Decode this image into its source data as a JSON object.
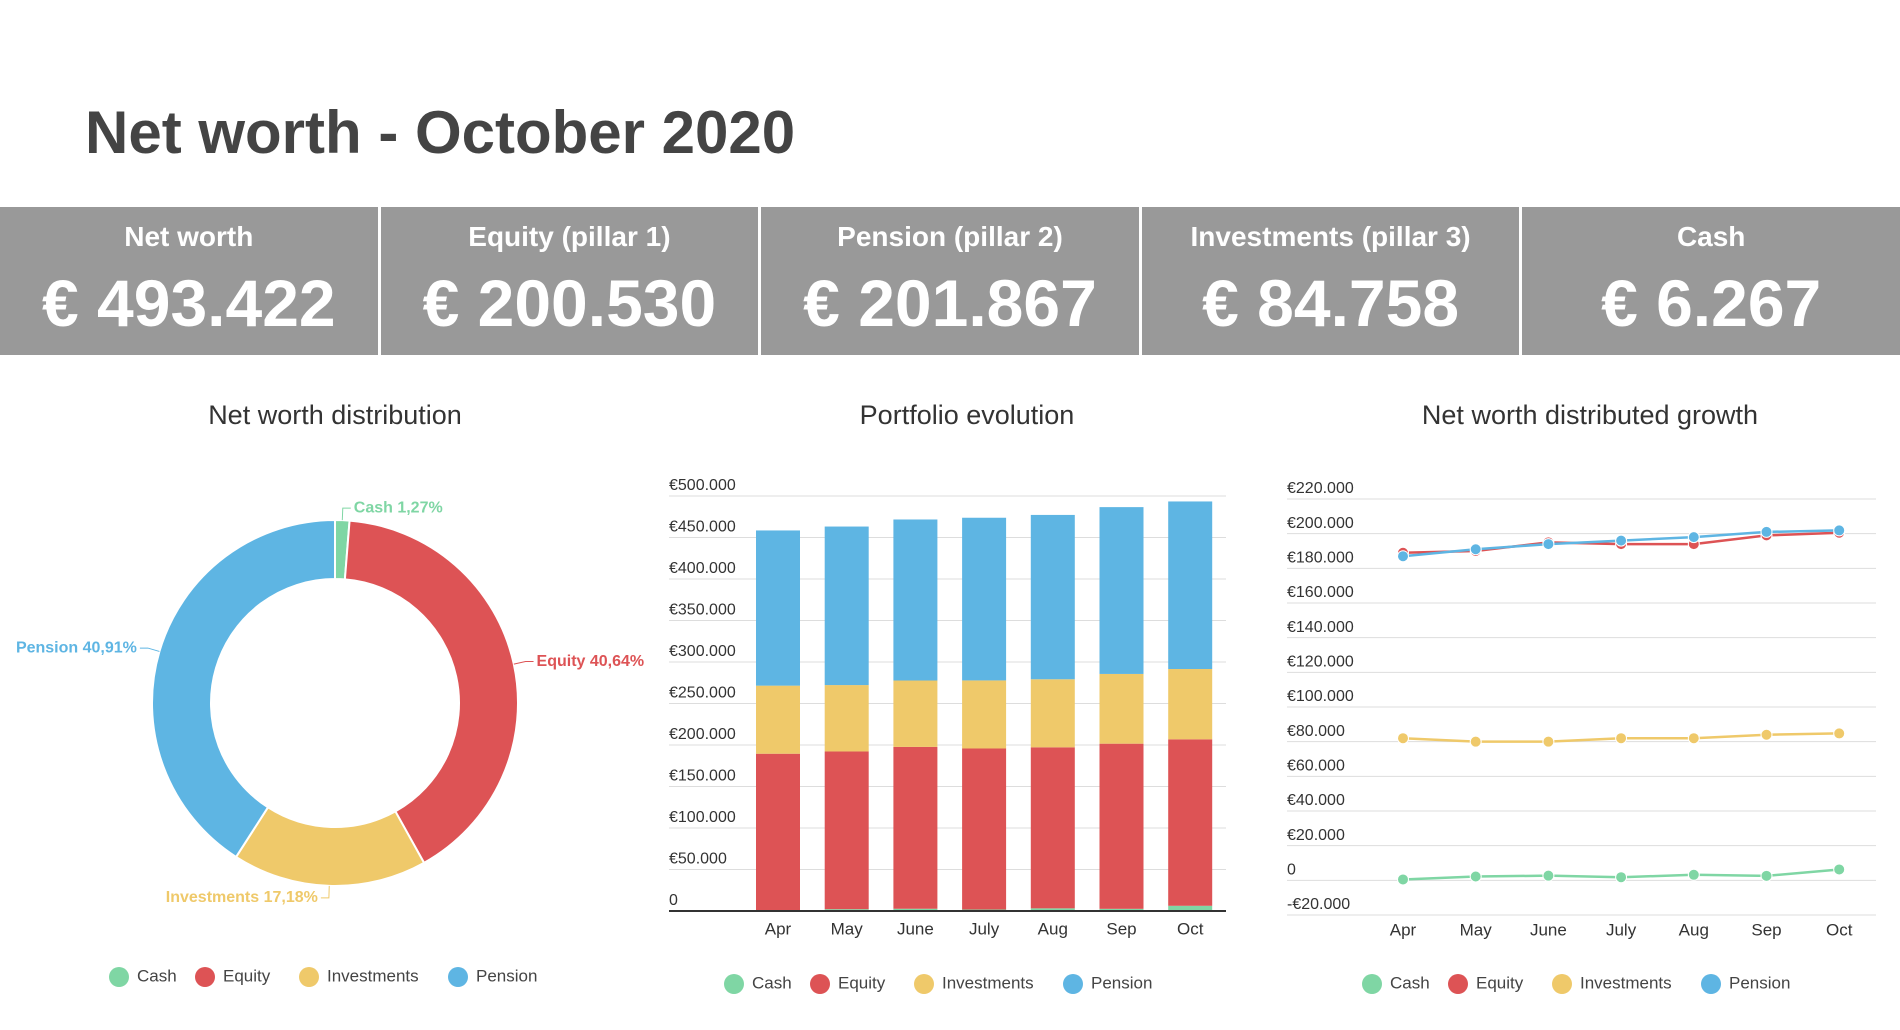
{
  "header": {
    "title": "Net worth - October 2020"
  },
  "kpis": [
    {
      "label": "Net worth",
      "value": "€ 493.422"
    },
    {
      "label": "Equity (pillar 1)",
      "value": "€ 200.530"
    },
    {
      "label": "Pension (pillar 2)",
      "value": "€ 201.867"
    },
    {
      "label": "Investments (pillar 3)",
      "value": "€ 84.758"
    },
    {
      "label": "Cash",
      "value": "€ 6.267"
    }
  ],
  "chart_data": [
    {
      "type": "pie",
      "title": "Net worth distribution",
      "donut": true,
      "categories": [
        "Cash",
        "Equity",
        "Investments",
        "Pension"
      ],
      "values": [
        1.27,
        40.64,
        17.18,
        40.91
      ],
      "value_labels": [
        "Cash 1,27%",
        "Equity 40,64%",
        "Investments 17,18%",
        "Pension 40,91%"
      ],
      "colors": [
        "#7fd6a4",
        "#dd5355",
        "#efc96a",
        "#5eb5e3"
      ]
    },
    {
      "type": "bar",
      "stacked": true,
      "title": "Portfolio evolution",
      "categories": [
        "Apr",
        "May",
        "June",
        "July",
        "Aug",
        "Sep",
        "Oct"
      ],
      "series": [
        {
          "name": "Cash",
          "color": "#7fd6a4",
          "values": [
            500,
            2200,
            2700,
            1800,
            3200,
            2600,
            6267
          ]
        },
        {
          "name": "Equity",
          "color": "#dd5355",
          "values": [
            189000,
            190000,
            195000,
            194000,
            194000,
            199000,
            200530
          ]
        },
        {
          "name": "Investments",
          "color": "#efc96a",
          "values": [
            82000,
            80000,
            80000,
            82000,
            82000,
            84000,
            84758
          ]
        },
        {
          "name": "Pension",
          "color": "#5eb5e3",
          "values": [
            187000,
            191000,
            194000,
            196000,
            198000,
            201000,
            201867
          ]
        }
      ],
      "ylim": [
        0,
        500000
      ],
      "yticks": [
        0,
        {
          "value": 50000,
          "label": "€50.000"
        },
        {
          "value": 100000,
          "label": "€100.000"
        },
        {
          "value": 150000,
          "label": "€150.000"
        },
        {
          "value": 200000,
          "label": "€200.000"
        },
        {
          "value": 250000,
          "label": "€250.000"
        },
        {
          "value": 300000,
          "label": "€300.000"
        },
        {
          "value": 350000,
          "label": "€350.000"
        },
        {
          "value": 400000,
          "label": "€400.000"
        },
        {
          "value": 450000,
          "label": "€450.000"
        },
        {
          "value": 500000,
          "label": "€500.000"
        }
      ],
      "grid": true
    },
    {
      "type": "line",
      "title": "Net worth distributed growth",
      "categories": [
        "Apr",
        "May",
        "June",
        "July",
        "Aug",
        "Sep",
        "Oct"
      ],
      "series": [
        {
          "name": "Cash",
          "color": "#7fd6a4",
          "values": [
            500,
            2200,
            2700,
            1800,
            3200,
            2600,
            6267
          ]
        },
        {
          "name": "Equity",
          "color": "#dd5355",
          "values": [
            189000,
            190000,
            195000,
            194000,
            194000,
            199000,
            200530
          ]
        },
        {
          "name": "Investments",
          "color": "#efc96a",
          "values": [
            82000,
            80000,
            80000,
            82000,
            82000,
            84000,
            84758
          ]
        },
        {
          "name": "Pension",
          "color": "#5eb5e3",
          "values": [
            187000,
            191000,
            194000,
            196000,
            198000,
            201000,
            201867
          ]
        }
      ],
      "ylim": [
        -20000,
        220000
      ],
      "yticks": [
        {
          "value": -20000,
          "label": "-€20.000"
        },
        0,
        {
          "value": 20000,
          "label": "€20.000"
        },
        {
          "value": 40000,
          "label": "€40.000"
        },
        {
          "value": 60000,
          "label": "€60.000"
        },
        {
          "value": 80000,
          "label": "€80.000"
        },
        {
          "value": 100000,
          "label": "€100.000"
        },
        {
          "value": 120000,
          "label": "€120.000"
        },
        {
          "value": 140000,
          "label": "€140.000"
        },
        {
          "value": 160000,
          "label": "€160.000"
        },
        {
          "value": 180000,
          "label": "€180.000"
        },
        {
          "value": 200000,
          "label": "€200.000"
        },
        {
          "value": 220000,
          "label": "€220.000"
        }
      ],
      "grid": true
    }
  ]
}
